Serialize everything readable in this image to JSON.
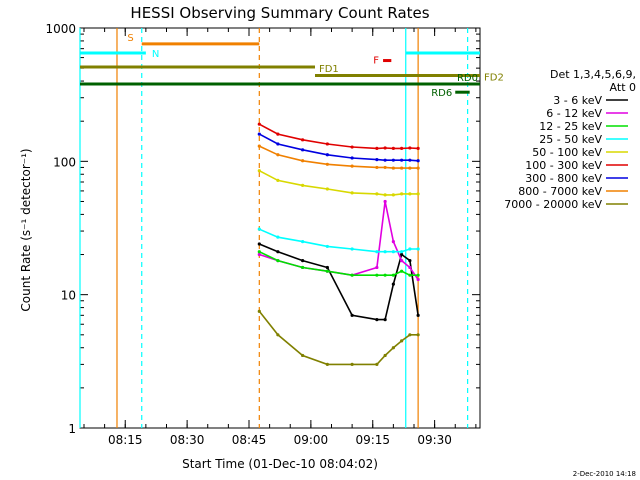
{
  "chart_data": {
    "type": "line",
    "title": "HESSI Observing Summary Count Rates",
    "xlabel": "Start Time (01-Dec-10 08:04:02)",
    "ylabel": "Count Rate (s⁻¹ detector⁻¹)",
    "y_scale": "log",
    "ylim": [
      1,
      1000
    ],
    "xlim": [
      "08:04:02",
      "09:41:00"
    ],
    "x_ticks": [
      "08:15",
      "08:30",
      "08:45",
      "09:00",
      "09:15",
      "09:30"
    ],
    "y_ticks": [
      "1",
      "10",
      "100",
      "1000"
    ],
    "footer": "2-Dec-2010 14:18",
    "legend": {
      "header_lines": [
        "Det 1,3,4,5,6,9,",
        "Att 0"
      ],
      "placement": "right",
      "entries": [
        {
          "label": "3 - 6 keV",
          "color": "#000000"
        },
        {
          "label": "6 - 12 keV",
          "color": "#e000e0"
        },
        {
          "label": "12 - 25 keV",
          "color": "#00e000"
        },
        {
          "label": "25 - 50 keV",
          "color": "#00ffff"
        },
        {
          "label": "50 - 100 keV",
          "color": "#d8d800"
        },
        {
          "label": "100 - 300 keV",
          "color": "#e00000"
        },
        {
          "label": "300 - 800 keV",
          "color": "#0000e0"
        },
        {
          "label": "800 - 7000 keV",
          "color": "#f08000"
        },
        {
          "label": "7000 - 20000 keV",
          "color": "#808000"
        }
      ]
    },
    "flag_bars": [
      {
        "label": "S",
        "color": "#f08000",
        "start": "08:19:00",
        "end": "08:47:30",
        "y": 760
      },
      {
        "label": "N",
        "color": "#00ffff",
        "start": "08:04:02",
        "end": "08:20:00",
        "y": 650
      },
      {
        "label": "N",
        "color": "#00ffff",
        "start": "09:23:00",
        "end": "09:41:00",
        "y": 650
      },
      {
        "label": "FD1",
        "color": "#808000",
        "start": "08:04:02",
        "end": "09:01:00",
        "y": 510
      },
      {
        "label": "FD2",
        "color": "#808000",
        "start": "09:01:00",
        "end": "09:41:00",
        "y": 440
      },
      {
        "label": "F",
        "color": "#e00000",
        "start": "09:17:30",
        "end": "09:19:30",
        "y": 570
      },
      {
        "label": "RD0",
        "color": "#006000",
        "start": "08:04:02",
        "end": "09:41:00",
        "y": 380
      },
      {
        "label": "RD6",
        "color": "#006000",
        "start": "09:35:00",
        "end": "09:38:30",
        "y": 330
      }
    ],
    "vlines": [
      {
        "time": "08:04:02",
        "color": "#00ffff",
        "dashed": false
      },
      {
        "time": "08:13:00",
        "color": "#f08000",
        "dashed": false
      },
      {
        "time": "08:19:00",
        "color": "#00ffff",
        "dashed": true
      },
      {
        "time": "08:47:30",
        "color": "#f08000",
        "dashed": true
      },
      {
        "time": "09:23:00",
        "color": "#00ffff",
        "dashed": false
      },
      {
        "time": "09:26:00",
        "color": "#f08000",
        "dashed": false
      },
      {
        "time": "09:38:00",
        "color": "#00ffff",
        "dashed": true
      }
    ],
    "x_times": [
      "08:47:30",
      "08:52:00",
      "08:58:00",
      "09:04:00",
      "09:10:00",
      "09:16:00",
      "09:18:00",
      "09:20:00",
      "09:22:00",
      "09:24:00",
      "09:26:00"
    ],
    "series": [
      {
        "name": "3 - 6 keV",
        "color": "#000000",
        "values": [
          24,
          21,
          18,
          16,
          7,
          6.5,
          6.5,
          12,
          20,
          18,
          7
        ]
      },
      {
        "name": "6 - 12 keV",
        "color": "#e000e0",
        "values": [
          20,
          18,
          16,
          15,
          14,
          16,
          50,
          25,
          18,
          16,
          13
        ]
      },
      {
        "name": "12 - 25 keV",
        "color": "#00e000",
        "values": [
          21,
          18,
          16,
          15,
          14,
          14,
          14,
          14,
          15,
          14,
          14
        ]
      },
      {
        "name": "25 - 50 keV",
        "color": "#00ffff",
        "values": [
          31,
          27,
          25,
          23,
          22,
          21,
          21,
          21,
          21,
          22,
          22
        ]
      },
      {
        "name": "50 - 100 keV",
        "color": "#d8d800",
        "values": [
          85,
          72,
          66,
          62,
          58,
          57,
          56,
          56,
          57,
          57,
          57
        ]
      },
      {
        "name": "100 - 300 keV",
        "color": "#e00000",
        "values": [
          190,
          160,
          145,
          135,
          128,
          125,
          126,
          125,
          125,
          126,
          125
        ]
      },
      {
        "name": "300 - 800 keV",
        "color": "#0000e0",
        "values": [
          160,
          135,
          122,
          112,
          106,
          103,
          102,
          102,
          102,
          102,
          101
        ]
      },
      {
        "name": "800 - 7000 keV",
        "color": "#f08000",
        "values": [
          130,
          112,
          101,
          95,
          92,
          90,
          90,
          89,
          89,
          89,
          89
        ]
      },
      {
        "name": "7000 - 20000 keV",
        "color": "#808000",
        "values": [
          7.5,
          5,
          3.5,
          3,
          3,
          3,
          3.5,
          4,
          4.5,
          5,
          5
        ]
      }
    ]
  }
}
